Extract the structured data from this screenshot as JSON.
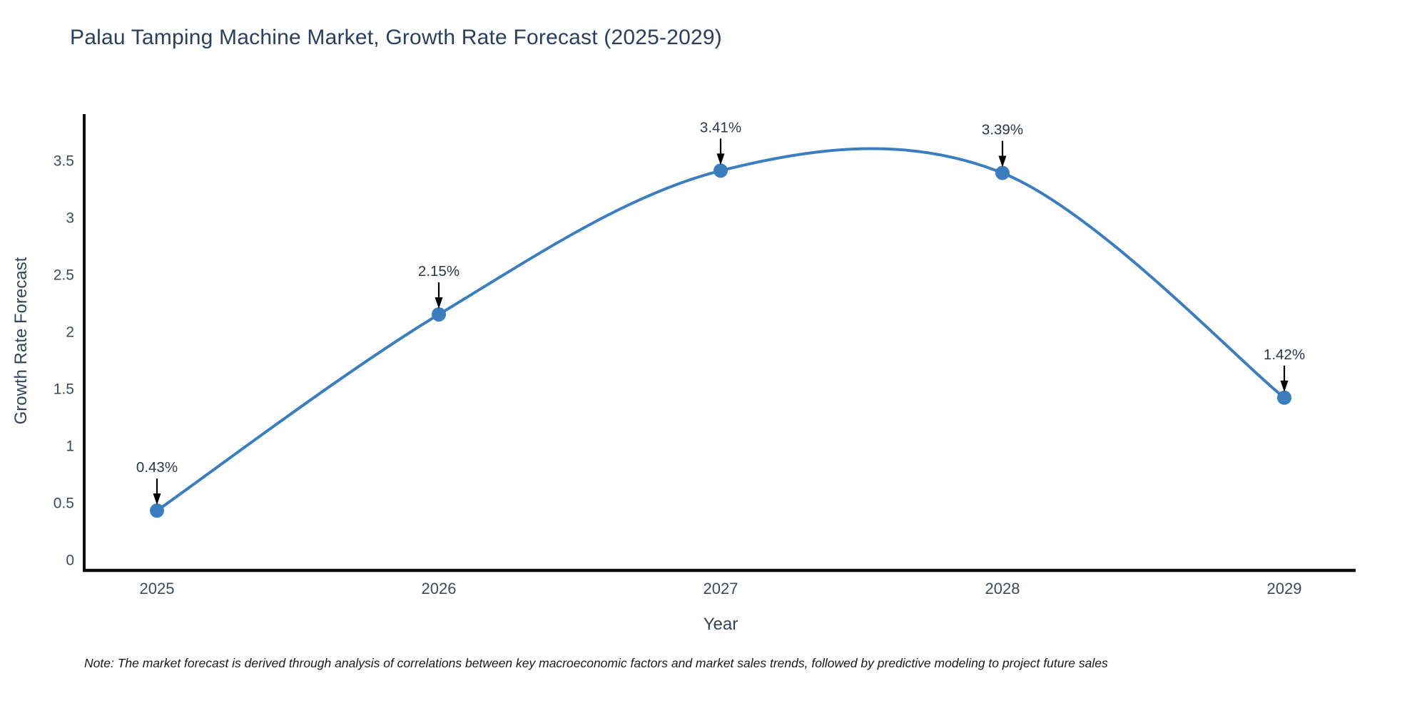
{
  "title": "Palau Tamping Machine Market, Growth Rate Forecast (2025-2029)",
  "note": "Note: The market forecast is derived through analysis of correlations between key macroeconomic factors and market sales trends, followed by predictive modeling to project future sales",
  "chart_data": {
    "type": "line",
    "title": "Palau Tamping Machine Market, Growth Rate Forecast (2025-2029)",
    "x": [
      2025,
      2026,
      2027,
      2028,
      2029
    ],
    "y": [
      0.43,
      2.15,
      3.41,
      3.39,
      1.42
    ],
    "point_labels": [
      "0.43%",
      "2.15%",
      "3.41%",
      "3.39%",
      "1.42%"
    ],
    "xlabel": "Year",
    "ylabel": "Growth Rate Forecast",
    "xticks": [
      "2025",
      "2026",
      "2027",
      "2028",
      "2029"
    ],
    "yticks": [
      0,
      0.5,
      1,
      1.5,
      2,
      2.5,
      3,
      3.5
    ],
    "ylim": [
      -0.094,
      3.906
    ],
    "grid": false,
    "line_shape": "spline",
    "legend": "none",
    "colors": {
      "line": "#3a7ebf",
      "marker": "#3a7ebf",
      "axis": "#0d0d0d",
      "title": "#2a3f5f",
      "tick": "#3e4a5a",
      "annotation": "#2e3744"
    }
  }
}
